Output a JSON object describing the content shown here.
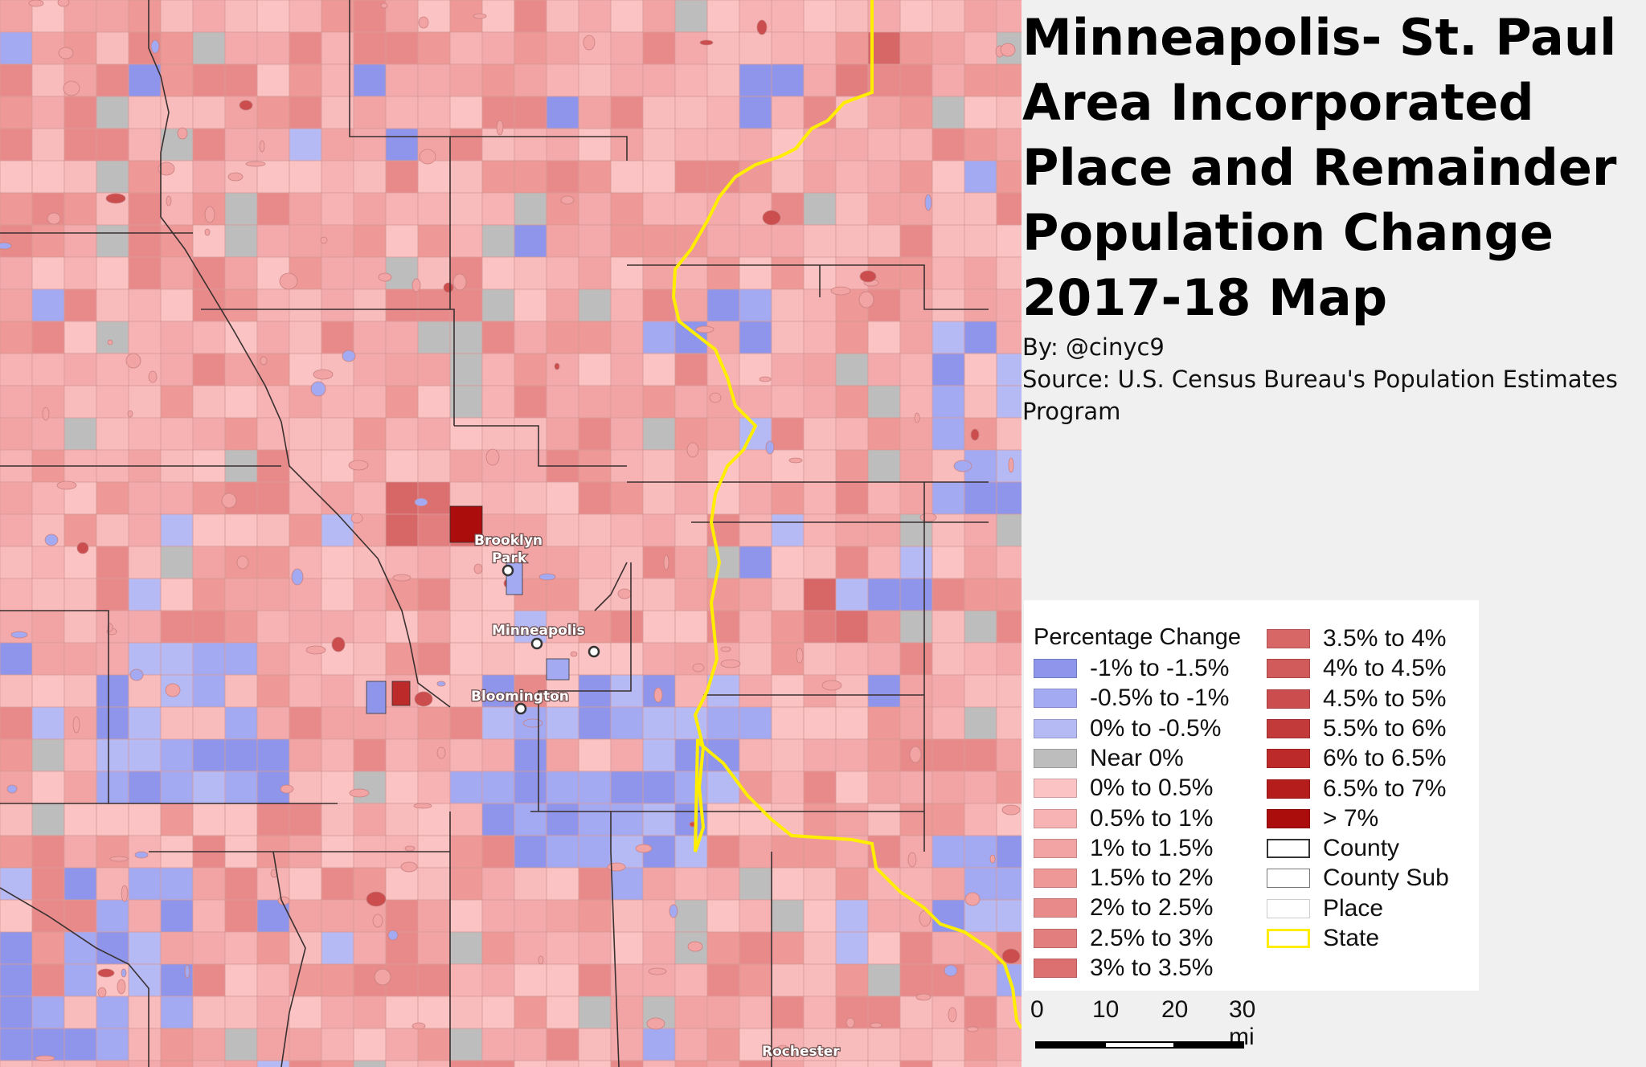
{
  "title_lines": [
    "Minneapolis- St. Paul",
    "Area Incorporated",
    "Place and Remainder",
    "Population Change",
    "2017-18 Map"
  ],
  "credits": {
    "by": "By: @cinyc9",
    "source_line1": "Source: U.S. Census Bureau's Population Estimates",
    "source_line2": "Program"
  },
  "legend": {
    "title": "Percentage Change",
    "items_left": [
      {
        "label": "-1% to -1.5%",
        "color": "#8e95ea"
      },
      {
        "label": "-0.5% to -1%",
        "color": "#a4aaf2"
      },
      {
        "label": "0% to -0.5%",
        "color": "#b5baf5"
      },
      {
        "label": "Near 0%",
        "color": "#bdbdbd"
      },
      {
        "label": "0% to 0.5%",
        "color": "#fbc3c3"
      },
      {
        "label": "0.5% to 1%",
        "color": "#f7b3b3"
      },
      {
        "label": "1% to 1.5%",
        "color": "#f2a4a4"
      },
      {
        "label": "1.5% to 2%",
        "color": "#ee9898"
      },
      {
        "label": "2% to 2.5%",
        "color": "#e88a8a"
      },
      {
        "label": "2.5% to 3%",
        "color": "#e27e7e"
      },
      {
        "label": "3% to 3.5%",
        "color": "#dc7070"
      }
    ],
    "items_right": [
      {
        "label": "3.5% to 4%",
        "color": "#d76767"
      },
      {
        "label": "4% to 4.5%",
        "color": "#d15a5a"
      },
      {
        "label": "4.5% to 5%",
        "color": "#cb4d4d"
      },
      {
        "label": "5.5% to 6%",
        "color": "#c33a3a"
      },
      {
        "label": "6% to 6.5%",
        "color": "#bc2a2a"
      },
      {
        "label": "6.5% to 7%",
        "color": "#b51c1c"
      },
      {
        "label": "> 7%",
        "color": "#ab0c0c"
      },
      {
        "label": "County",
        "kind": "county"
      },
      {
        "label": "County Sub",
        "kind": "sub"
      },
      {
        "label": "Place",
        "kind": "place"
      },
      {
        "label": "State",
        "kind": "state"
      }
    ]
  },
  "scale": {
    "labels": [
      "0",
      "10",
      "20",
      "30 mi"
    ]
  },
  "cities": [
    {
      "name": "Brooklyn",
      "name2": "Park"
    },
    {
      "name": "Minneapolis"
    },
    {
      "name": "Bloomington"
    },
    {
      "name": "Rochester"
    }
  ],
  "colors": {
    "state_line": "#ffee00",
    "county_line": "#3a3030",
    "place_line": "#c98080"
  }
}
